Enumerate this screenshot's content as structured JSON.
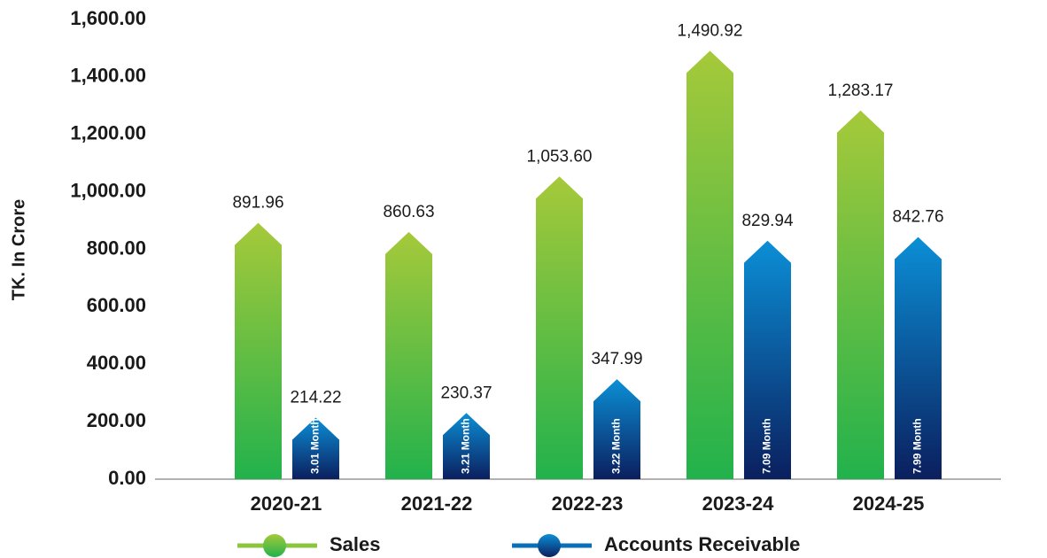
{
  "chart_data": {
    "type": "bar",
    "y_label": "TK. In Crore",
    "categories": [
      "2020-21",
      "2021-22",
      "2022-23",
      "2023-24",
      "2024-25"
    ],
    "series": [
      {
        "name": "Sales",
        "color": "#8cc63f",
        "values": [
          891.96,
          860.63,
          1053.6,
          1490.92,
          1283.17
        ],
        "value_labels": [
          "891.96",
          "860.63",
          "1,053.60",
          "1,490.92",
          "1,283.17"
        ]
      },
      {
        "name": "Accounts Receivable",
        "color": "#0a6fb8",
        "values": [
          214.22,
          230.37,
          347.99,
          829.94,
          842.76
        ],
        "value_labels": [
          "214.22",
          "230.37",
          "347.99",
          "829.94",
          "842.76"
        ],
        "month_labels": [
          "3.01 Month",
          "3.21 Month",
          "3.22 Month",
          "7.09 Month",
          "7.99 Month"
        ]
      }
    ],
    "ylim": [
      0,
      1600
    ],
    "yticks": [
      {
        "value": 0,
        "label": "0.00"
      },
      {
        "value": 200,
        "label": "200.00"
      },
      {
        "value": 400,
        "label": "400.00"
      },
      {
        "value": 600,
        "label": "600.00"
      },
      {
        "value": 800,
        "label": "800.00"
      },
      {
        "value": 1000,
        "label": "1,000.00"
      },
      {
        "value": 1200,
        "label": "1,200.00"
      },
      {
        "value": 1400,
        "label": "1,400.00"
      },
      {
        "value": 1600,
        "label": "1,600.00"
      }
    ],
    "grid": false,
    "legend": "bottom"
  }
}
